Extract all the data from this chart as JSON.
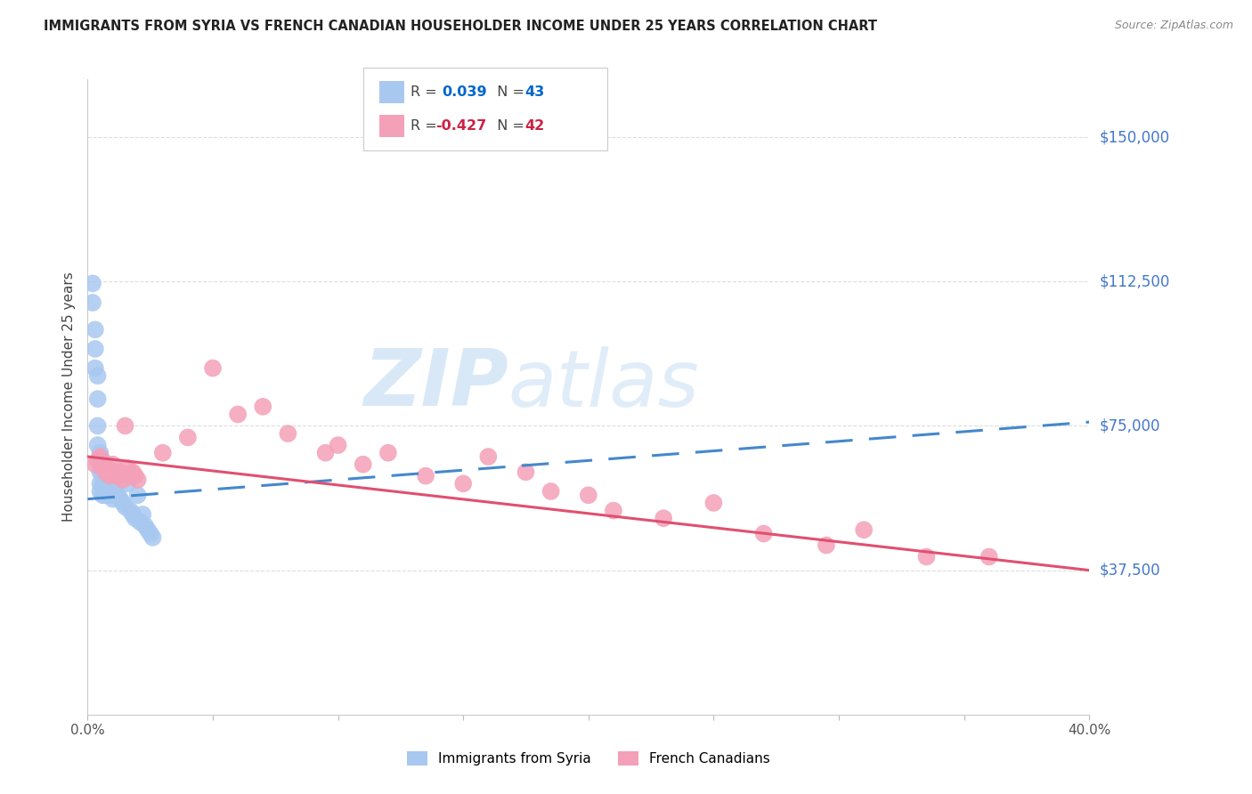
{
  "title": "IMMIGRANTS FROM SYRIA VS FRENCH CANADIAN HOUSEHOLDER INCOME UNDER 25 YEARS CORRELATION CHART",
  "source": "Source: ZipAtlas.com",
  "ylabel": "Householder Income Under 25 years",
  "xlim": [
    0.0,
    0.4
  ],
  "ylim": [
    0,
    165000
  ],
  "series1_label": "Immigrants from Syria",
  "series2_label": "French Canadians",
  "series1_color": "#a8c8f0",
  "series2_color": "#f4a0b8",
  "trend1_color": "#4488cc",
  "trend2_color": "#e05070",
  "watermark_zip": "ZIP",
  "watermark_atlas": "atlas",
  "background_color": "#ffffff",
  "grid_color": "#dddddd",
  "right_label_color": "#4477cc",
  "series1_R": "0.039",
  "series1_N": "43",
  "series2_R": "-0.427",
  "series2_N": "42",
  "series1_x": [
    0.002,
    0.002,
    0.003,
    0.003,
    0.003,
    0.004,
    0.004,
    0.004,
    0.004,
    0.005,
    0.005,
    0.005,
    0.005,
    0.005,
    0.006,
    0.006,
    0.006,
    0.006,
    0.007,
    0.007,
    0.007,
    0.008,
    0.008,
    0.009,
    0.009,
    0.01,
    0.01,
    0.011,
    0.012,
    0.013,
    0.014,
    0.015,
    0.016,
    0.017,
    0.018,
    0.019,
    0.02,
    0.021,
    0.022,
    0.023,
    0.024,
    0.025,
    0.026
  ],
  "series1_y": [
    112000,
    107000,
    100000,
    95000,
    90000,
    88000,
    82000,
    75000,
    70000,
    68000,
    65000,
    63000,
    60000,
    58000,
    66000,
    63000,
    60000,
    57000,
    64000,
    60000,
    57000,
    63000,
    58000,
    62000,
    57000,
    61000,
    56000,
    58000,
    57000,
    56000,
    55000,
    54000,
    60000,
    53000,
    52000,
    51000,
    57000,
    50000,
    52000,
    49000,
    48000,
    47000,
    46000
  ],
  "series2_x": [
    0.003,
    0.004,
    0.005,
    0.006,
    0.007,
    0.008,
    0.009,
    0.01,
    0.011,
    0.012,
    0.013,
    0.014,
    0.015,
    0.016,
    0.017,
    0.018,
    0.019,
    0.02,
    0.03,
    0.04,
    0.05,
    0.06,
    0.07,
    0.08,
    0.095,
    0.1,
    0.11,
    0.12,
    0.135,
    0.15,
    0.16,
    0.175,
    0.185,
    0.2,
    0.21,
    0.23,
    0.25,
    0.27,
    0.295,
    0.31,
    0.335,
    0.36
  ],
  "series2_y": [
    65000,
    66000,
    67000,
    65000,
    63000,
    64000,
    62000,
    65000,
    63000,
    62000,
    63000,
    61000,
    75000,
    64000,
    62000,
    63000,
    62000,
    61000,
    68000,
    72000,
    90000,
    78000,
    80000,
    73000,
    68000,
    70000,
    65000,
    68000,
    62000,
    60000,
    67000,
    63000,
    58000,
    57000,
    53000,
    51000,
    55000,
    47000,
    44000,
    48000,
    41000,
    41000
  ]
}
